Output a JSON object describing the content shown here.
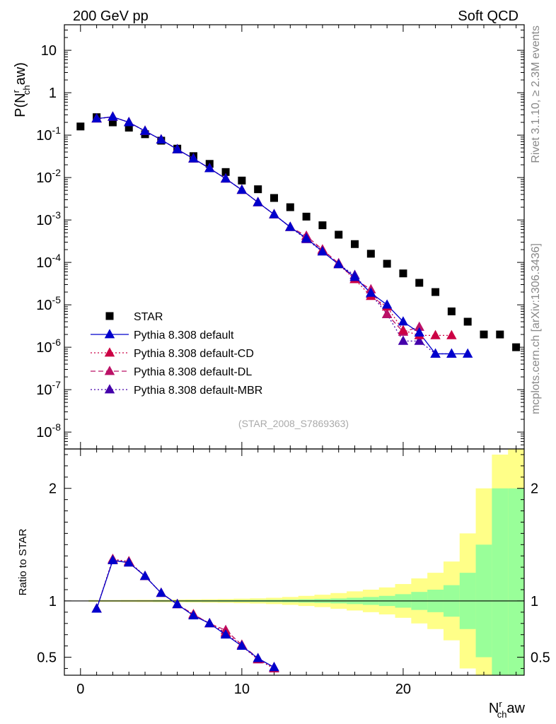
{
  "header": {
    "left_title": "200 GeV pp",
    "right_title": "Soft QCD",
    "watermark": "(STAR_2008_S7869363)",
    "side_rivet": "Rivet 3.1.10, ≥ 2.3M events",
    "side_mcplots": "mcplots.cern.ch [arXiv:1306.3436]"
  },
  "chart_data": [
    {
      "type": "scatter",
      "yscale": "log",
      "ylabel": "P(N^r_ch aw)",
      "xlim": [
        -1,
        27.5
      ],
      "ylim": [
        4e-09,
        40
      ],
      "y_ticks": [
        "10^-8",
        "10^-7",
        "10^-6",
        "10^-5",
        "10^-4",
        "10^-3",
        "10^-2",
        "10^-1",
        "1",
        "10"
      ],
      "legend_position": "bottom-left",
      "series": [
        {
          "name": "STAR",
          "color": "#000000",
          "marker": "square",
          "x": [
            0,
            1,
            2,
            3,
            4,
            5,
            6,
            7,
            8,
            9,
            10,
            11,
            12,
            13,
            14,
            15,
            16,
            17,
            18,
            19,
            20,
            21,
            22,
            23,
            24,
            25,
            26,
            27
          ],
          "y": [
            0.16,
            0.265,
            0.2,
            0.15,
            0.105,
            0.074,
            0.048,
            0.032,
            0.021,
            0.0135,
            0.0085,
            0.0053,
            0.0033,
            0.002,
            0.0012,
            0.00075,
            0.00045,
            0.00027,
            0.00016,
            9.3e-05,
            5.5e-05,
            3.3e-05,
            2e-05,
            7e-06,
            4e-06,
            2e-06,
            2e-06,
            1e-06
          ]
        },
        {
          "name": "Pythia 8.308 default",
          "color": "#0000cc",
          "marker": "triangle",
          "line": "solid",
          "x": [
            1,
            2,
            3,
            4,
            5,
            6,
            7,
            8,
            9,
            10,
            11,
            12,
            13,
            14,
            15,
            16,
            17,
            18,
            19,
            20,
            21,
            22,
            23,
            24
          ],
          "y": [
            0.245,
            0.27,
            0.2,
            0.125,
            0.078,
            0.046,
            0.028,
            0.0165,
            0.0094,
            0.0051,
            0.0026,
            0.00135,
            0.00068,
            0.00037,
            0.00018,
            9e-05,
            4.5e-05,
            1.9e-05,
            1e-05,
            4e-06,
            2.2e-06,
            7e-07,
            7e-07,
            7e-07
          ]
        },
        {
          "name": "Pythia 8.308 default-CD",
          "color": "#cc0044",
          "marker": "triangle",
          "line": "dotted",
          "x": [
            1,
            2,
            3,
            4,
            5,
            6,
            7,
            8,
            9,
            10,
            11,
            12,
            13,
            14,
            15,
            16,
            17,
            18,
            19,
            20,
            21,
            22,
            23
          ],
          "y": [
            0.245,
            0.27,
            0.2,
            0.125,
            0.078,
            0.046,
            0.028,
            0.0165,
            0.0094,
            0.0051,
            0.0026,
            0.00135,
            0.00068,
            0.00038,
            0.00019,
            9e-05,
            4e-05,
            1.6e-05,
            9e-06,
            2.5e-06,
            1.9e-06,
            1.9e-06,
            1.9e-06
          ]
        },
        {
          "name": "Pythia 8.308 default-DL",
          "color": "#bb1166",
          "marker": "triangle",
          "line": "dashed",
          "x": [
            1,
            2,
            3,
            4,
            5,
            6,
            7,
            8,
            9,
            10,
            11,
            12,
            13,
            14,
            15,
            16,
            17,
            18,
            19,
            20,
            21
          ],
          "y": [
            0.245,
            0.27,
            0.2,
            0.125,
            0.078,
            0.046,
            0.028,
            0.0165,
            0.0094,
            0.0051,
            0.0026,
            0.00135,
            0.00068,
            0.00042,
            0.0002,
            9.5e-05,
            4e-05,
            2.3e-05,
            6e-06,
            2.3e-06,
            3e-06
          ]
        },
        {
          "name": "Pythia 8.308 default-MBR",
          "color": "#4400aa",
          "marker": "triangle",
          "line": "dotted",
          "x": [
            1,
            2,
            3,
            4,
            5,
            6,
            7,
            8,
            9,
            10,
            11,
            12,
            13,
            14,
            15,
            16,
            17,
            18,
            19,
            20,
            21,
            22,
            23
          ],
          "y": [
            0.245,
            0.27,
            0.2,
            0.125,
            0.078,
            0.046,
            0.028,
            0.0165,
            0.0094,
            0.0051,
            0.0026,
            0.00135,
            0.00068,
            0.00035,
            0.00018,
            9e-05,
            5e-05,
            1.8e-05,
            6e-06,
            1.4e-06,
            1.4e-06,
            7e-07,
            7e-07
          ]
        }
      ]
    },
    {
      "type": "line",
      "ylabel": "Ratio to STAR",
      "xlabel": "N^r_ch aw",
      "xlim": [
        -1,
        27.5
      ],
      "ylim": [
        0.34,
        2.35
      ],
      "x_ticks": [
        "0",
        "10",
        "20"
      ],
      "y_ticks": [
        "0.5",
        "1",
        "2"
      ],
      "reference_line": 1,
      "bands": {
        "x_edges": [
          0.5,
          1.5,
          2.5,
          3.5,
          4.5,
          5.5,
          6.5,
          7.5,
          8.5,
          9.5,
          10.5,
          11.5,
          12.5,
          13.5,
          14.5,
          15.5,
          16.5,
          17.5,
          18.5,
          19.5,
          20.5,
          21.5,
          22.5,
          23.5,
          24.5,
          25.5,
          26.5,
          27.5
        ],
        "inner_color": "#99ff99",
        "outer_color": "#ffff88",
        "inner": [
          0.004,
          0.004,
          0.004,
          0.004,
          0.005,
          0.005,
          0.006,
          0.006,
          0.007,
          0.008,
          0.009,
          0.01,
          0.012,
          0.015,
          0.018,
          0.022,
          0.028,
          0.035,
          0.045,
          0.06,
          0.08,
          0.1,
          0.14,
          0.25,
          0.5,
          1.0,
          1.0
        ],
        "outer": [
          0.008,
          0.008,
          0.009,
          0.01,
          0.011,
          0.012,
          0.013,
          0.015,
          0.017,
          0.02,
          0.023,
          0.028,
          0.035,
          0.045,
          0.055,
          0.07,
          0.085,
          0.1,
          0.12,
          0.15,
          0.2,
          0.25,
          0.35,
          0.6,
          1.0,
          1.3,
          1.4
        ]
      },
      "series": [
        {
          "name": "Pythia 8.308 default",
          "x": [
            1,
            2,
            3,
            4,
            5,
            6,
            7,
            8,
            9,
            10,
            11,
            12
          ],
          "y": [
            0.93,
            1.36,
            1.34,
            1.22,
            1.07,
            0.97,
            0.87,
            0.8,
            0.7,
            0.6,
            0.49,
            0.41
          ]
        },
        {
          "name": "Pythia 8.308 default-CD",
          "x": [
            1,
            2,
            3,
            4,
            5,
            6,
            7,
            8,
            9,
            10,
            11,
            12
          ],
          "y": [
            0.93,
            1.37,
            1.35,
            1.22,
            1.07,
            0.97,
            0.88,
            0.8,
            0.72,
            0.6,
            0.48,
            0.4
          ]
        },
        {
          "name": "Pythia 8.308 default-DL",
          "x": [
            1,
            2,
            3,
            4,
            5,
            6,
            7,
            8,
            9,
            10,
            11,
            12
          ],
          "y": [
            0.93,
            1.36,
            1.34,
            1.22,
            1.07,
            0.97,
            0.88,
            0.8,
            0.74,
            0.61,
            0.49,
            0.41
          ]
        },
        {
          "name": "Pythia 8.308 default-MBR",
          "x": [
            1,
            2,
            3,
            4,
            5,
            6,
            7,
            8,
            9,
            10,
            11,
            12
          ],
          "y": [
            0.93,
            1.37,
            1.35,
            1.22,
            1.07,
            0.97,
            0.87,
            0.8,
            0.71,
            0.6,
            0.48,
            0.4
          ]
        }
      ]
    }
  ]
}
